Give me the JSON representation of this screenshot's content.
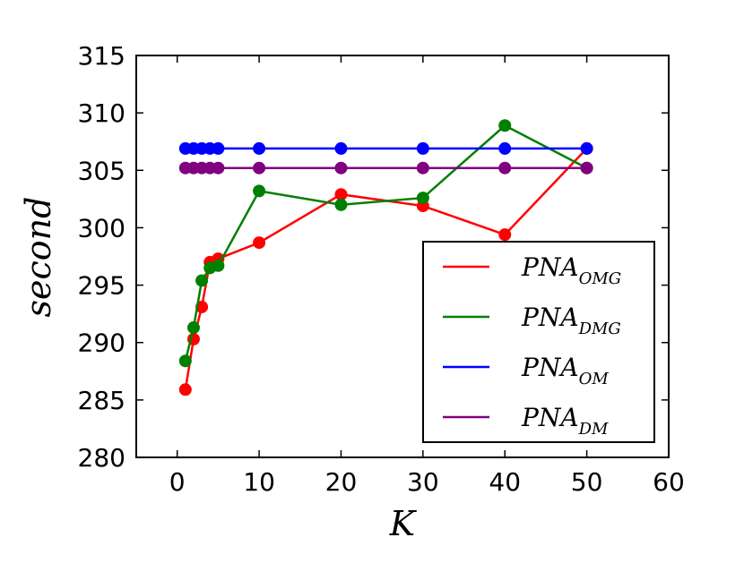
{
  "chart_data": {
    "type": "line",
    "xlabel": "K",
    "ylabel": "second",
    "xlim": [
      -5,
      60
    ],
    "ylim": [
      280,
      315
    ],
    "xticks": [
      0,
      10,
      20,
      30,
      40,
      50,
      60
    ],
    "yticks": [
      280,
      285,
      290,
      295,
      300,
      305,
      310,
      315
    ],
    "grid": false,
    "legend_position": "lower-right",
    "x": [
      1,
      2,
      3,
      4,
      5,
      10,
      20,
      30,
      40,
      50
    ],
    "series": [
      {
        "name": "PNA",
        "subscript": "OMG",
        "color": "#ff0000",
        "values": [
          285.9,
          290.3,
          293.1,
          297.0,
          297.3,
          298.7,
          302.9,
          301.9,
          299.4,
          306.9
        ]
      },
      {
        "name": "PNA",
        "subscript": "DMG",
        "color": "#008000",
        "values": [
          288.4,
          291.3,
          295.4,
          296.5,
          296.7,
          303.2,
          302.0,
          302.6,
          308.9,
          305.2
        ]
      },
      {
        "name": "PNA",
        "subscript": "OM",
        "color": "#0000ff",
        "values": [
          306.9,
          306.9,
          306.9,
          306.9,
          306.9,
          306.9,
          306.9,
          306.9,
          306.9,
          306.9
        ]
      },
      {
        "name": "PNA",
        "subscript": "DM",
        "color": "#800080",
        "values": [
          305.2,
          305.2,
          305.2,
          305.2,
          305.2,
          305.2,
          305.2,
          305.2,
          305.2,
          305.2
        ]
      }
    ]
  }
}
